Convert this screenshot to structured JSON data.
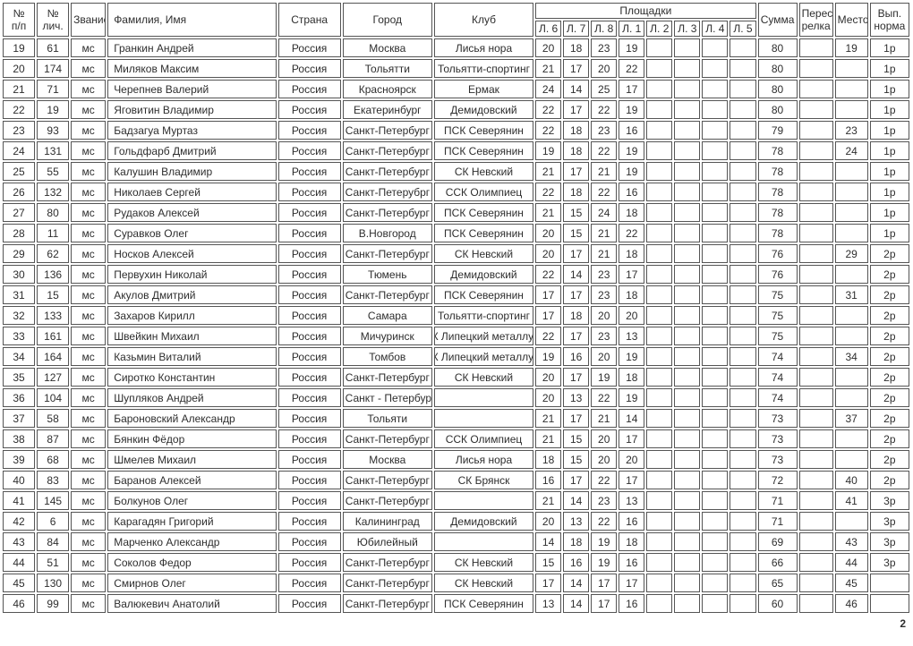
{
  "page": {
    "number": "2"
  },
  "table": {
    "headers": {
      "num": "№\nп/п",
      "personal_num": "№\nлич.",
      "rank": "Звание",
      "name": "Фамилия, Имя",
      "country": "Страна",
      "city": "Город",
      "club": "Клуб",
      "grounds_group": "Площадки",
      "ground_cols": [
        "Л. 6",
        "Л. 7",
        "Л. 8",
        "Л. 1",
        "Л. 2",
        "Л. 3",
        "Л. 4",
        "Л. 5"
      ],
      "sum": "Сумма",
      "shootoff": "Перест\nрелка",
      "place": "Место",
      "norm": "Вып.\nнорма"
    },
    "rows": [
      {
        "num": "19",
        "personal_num": "61",
        "rank": "мс",
        "name": "Гранкин Андрей",
        "country": "Россия",
        "city": "Москва",
        "club": "Лисья нора",
        "club_clipped": false,
        "scores": [
          "20",
          "18",
          "23",
          "19",
          "",
          "",
          "",
          ""
        ],
        "sum": "80",
        "shootoff": "",
        "place": "19",
        "norm": "1р"
      },
      {
        "num": "20",
        "personal_num": "174",
        "rank": "мс",
        "name": "Миляков Максим",
        "country": "Россия",
        "city": "Тольятти",
        "club": "Тольятти-спортинг",
        "club_clipped": false,
        "scores": [
          "21",
          "17",
          "20",
          "22",
          "",
          "",
          "",
          ""
        ],
        "sum": "80",
        "shootoff": "",
        "place": "",
        "norm": "1р"
      },
      {
        "num": "21",
        "personal_num": "71",
        "rank": "мс",
        "name": "Черепнев Валерий",
        "country": "Россия",
        "city": "Красноярск",
        "club": "Ермак",
        "club_clipped": false,
        "scores": [
          "24",
          "14",
          "25",
          "17",
          "",
          "",
          "",
          ""
        ],
        "sum": "80",
        "shootoff": "",
        "place": "",
        "norm": "1р"
      },
      {
        "num": "22",
        "personal_num": "19",
        "rank": "мс",
        "name": "Яговитин Владимир",
        "country": "Россия",
        "city": "Екатеринбург",
        "club": "Демидовский",
        "club_clipped": false,
        "scores": [
          "22",
          "17",
          "22",
          "19",
          "",
          "",
          "",
          ""
        ],
        "sum": "80",
        "shootoff": "",
        "place": "",
        "norm": "1р"
      },
      {
        "num": "23",
        "personal_num": "93",
        "rank": "мс",
        "name": "Бадзагуа Муртаз",
        "country": "Россия",
        "city": "Санкт-Петербург",
        "club": "ПСК Северянин",
        "club_clipped": false,
        "scores": [
          "22",
          "18",
          "23",
          "16",
          "",
          "",
          "",
          ""
        ],
        "sum": "79",
        "shootoff": "",
        "place": "23",
        "norm": "1р"
      },
      {
        "num": "24",
        "personal_num": "131",
        "rank": "мс",
        "name": "Гольдфарб Дмитрий",
        "country": "Россия",
        "city": "Санкт-Петербург",
        "club": "ПСК Северянин",
        "club_clipped": false,
        "scores": [
          "19",
          "18",
          "22",
          "19",
          "",
          "",
          "",
          ""
        ],
        "sum": "78",
        "shootoff": "",
        "place": "24",
        "norm": "1р"
      },
      {
        "num": "25",
        "personal_num": "55",
        "rank": "мс",
        "name": "Калушин Владимир",
        "country": "Россия",
        "city": "Санкт-Петербург",
        "club": "СК Невский",
        "club_clipped": false,
        "scores": [
          "21",
          "17",
          "21",
          "19",
          "",
          "",
          "",
          ""
        ],
        "sum": "78",
        "shootoff": "",
        "place": "",
        "norm": "1р"
      },
      {
        "num": "26",
        "personal_num": "132",
        "rank": "мс",
        "name": "Николаев Сергей",
        "country": "Россия",
        "city": "Санкт-Петерубрг",
        "club": "ССК Олимпиец",
        "club_clipped": false,
        "scores": [
          "22",
          "18",
          "22",
          "16",
          "",
          "",
          "",
          ""
        ],
        "sum": "78",
        "shootoff": "",
        "place": "",
        "norm": "1р"
      },
      {
        "num": "27",
        "personal_num": "80",
        "rank": "мс",
        "name": "Рудаков Алексей",
        "country": "Россия",
        "city": "Санкт-Петербург",
        "club": "ПСК Северянин",
        "club_clipped": false,
        "scores": [
          "21",
          "15",
          "24",
          "18",
          "",
          "",
          "",
          ""
        ],
        "sum": "78",
        "shootoff": "",
        "place": "",
        "norm": "1р"
      },
      {
        "num": "28",
        "personal_num": "11",
        "rank": "мс",
        "name": "Суравков Олег",
        "country": "Россия",
        "city": "В.Новгород",
        "club": "ПСК Северянин",
        "club_clipped": false,
        "scores": [
          "20",
          "15",
          "21",
          "22",
          "",
          "",
          "",
          ""
        ],
        "sum": "78",
        "shootoff": "",
        "place": "",
        "norm": "1р"
      },
      {
        "num": "29",
        "personal_num": "62",
        "rank": "мс",
        "name": "Носков Алексей",
        "country": "Россия",
        "city": "Санкт-Петербург",
        "club": "СК Невский",
        "club_clipped": false,
        "scores": [
          "20",
          "17",
          "21",
          "18",
          "",
          "",
          "",
          ""
        ],
        "sum": "76",
        "shootoff": "",
        "place": "29",
        "norm": "2р"
      },
      {
        "num": "30",
        "personal_num": "136",
        "rank": "мс",
        "name": "Первухин Николай",
        "country": "Россия",
        "city": "Тюмень",
        "club": "Демидовский",
        "club_clipped": false,
        "scores": [
          "22",
          "14",
          "23",
          "17",
          "",
          "",
          "",
          ""
        ],
        "sum": "76",
        "shootoff": "",
        "place": "",
        "norm": "2р"
      },
      {
        "num": "31",
        "personal_num": "15",
        "rank": "мс",
        "name": "Акулов Дмитрий",
        "country": "Россия",
        "city": "Санкт-Петербург",
        "club": "ПСК Северянин",
        "club_clipped": false,
        "scores": [
          "17",
          "17",
          "23",
          "18",
          "",
          "",
          "",
          ""
        ],
        "sum": "75",
        "shootoff": "",
        "place": "31",
        "norm": "2р"
      },
      {
        "num": "32",
        "personal_num": "133",
        "rank": "мс",
        "name": "Захаров Кирилл",
        "country": "Россия",
        "city": "Самара",
        "club": "Тольятти-спортинг",
        "club_clipped": false,
        "scores": [
          "17",
          "18",
          "20",
          "20",
          "",
          "",
          "",
          ""
        ],
        "sum": "75",
        "shootoff": "",
        "place": "",
        "norm": "2р"
      },
      {
        "num": "33",
        "personal_num": "161",
        "rank": "мс",
        "name": "Швейкин Михаил",
        "country": "Россия",
        "city": "Мичуринск",
        "club": "СК Липецкий металлург",
        "club_clipped": true,
        "scores": [
          "22",
          "17",
          "23",
          "13",
          "",
          "",
          "",
          ""
        ],
        "sum": "75",
        "shootoff": "",
        "place": "",
        "norm": "2р"
      },
      {
        "num": "34",
        "personal_num": "164",
        "rank": "мс",
        "name": "Казьмин Виталий",
        "country": "Россия",
        "city": "Томбов",
        "club": "СК Липецкий металлург",
        "club_clipped": true,
        "scores": [
          "19",
          "16",
          "20",
          "19",
          "",
          "",
          "",
          ""
        ],
        "sum": "74",
        "shootoff": "",
        "place": "34",
        "norm": "2р"
      },
      {
        "num": "35",
        "personal_num": "127",
        "rank": "мс",
        "name": "Сиротко Константин",
        "country": "Россия",
        "city": "Санкт-Петербург",
        "club": "СК Невский",
        "club_clipped": false,
        "scores": [
          "20",
          "17",
          "19",
          "18",
          "",
          "",
          "",
          ""
        ],
        "sum": "74",
        "shootoff": "",
        "place": "",
        "norm": "2р"
      },
      {
        "num": "36",
        "personal_num": "104",
        "rank": "мс",
        "name": "Шупляков Андрей",
        "country": "Россия",
        "city": "Санкт - Петербург",
        "club": "",
        "club_clipped": false,
        "scores": [
          "20",
          "13",
          "22",
          "19",
          "",
          "",
          "",
          ""
        ],
        "sum": "74",
        "shootoff": "",
        "place": "",
        "norm": "2р"
      },
      {
        "num": "37",
        "personal_num": "58",
        "rank": "мс",
        "name": "Бароновский Александр",
        "country": "Россия",
        "city": "Тольяти",
        "club": "",
        "club_clipped": false,
        "scores": [
          "21",
          "17",
          "21",
          "14",
          "",
          "",
          "",
          ""
        ],
        "sum": "73",
        "shootoff": "",
        "place": "37",
        "norm": "2р"
      },
      {
        "num": "38",
        "personal_num": "87",
        "rank": "мс",
        "name": "Бянкин Фёдор",
        "country": "Россия",
        "city": "Санкт-Петербург",
        "club": "ССК Олимпиец",
        "club_clipped": false,
        "scores": [
          "21",
          "15",
          "20",
          "17",
          "",
          "",
          "",
          ""
        ],
        "sum": "73",
        "shootoff": "",
        "place": "",
        "norm": "2р"
      },
      {
        "num": "39",
        "personal_num": "68",
        "rank": "мс",
        "name": "Шмелев Михаил",
        "country": "Россия",
        "city": "Москва",
        "club": "Лисья нора",
        "club_clipped": false,
        "scores": [
          "18",
          "15",
          "20",
          "20",
          "",
          "",
          "",
          ""
        ],
        "sum": "73",
        "shootoff": "",
        "place": "",
        "norm": "2р"
      },
      {
        "num": "40",
        "personal_num": "83",
        "rank": "мс",
        "name": "Баранов Алексей",
        "country": "Россия",
        "city": "Санкт-Петербург",
        "club": "СК Брянск",
        "club_clipped": false,
        "scores": [
          "16",
          "17",
          "22",
          "17",
          "",
          "",
          "",
          ""
        ],
        "sum": "72",
        "shootoff": "",
        "place": "40",
        "norm": "2р"
      },
      {
        "num": "41",
        "personal_num": "145",
        "rank": "мс",
        "name": "Болкунов Олег",
        "country": "Россия",
        "city": "Санкт-Петербург",
        "club": "",
        "club_clipped": false,
        "scores": [
          "21",
          "14",
          "23",
          "13",
          "",
          "",
          "",
          ""
        ],
        "sum": "71",
        "shootoff": "",
        "place": "41",
        "norm": "3р"
      },
      {
        "num": "42",
        "personal_num": "6",
        "rank": "мс",
        "name": "Карагадян Григорий",
        "country": "Россия",
        "city": "Калининград",
        "club": "Демидовский",
        "club_clipped": false,
        "scores": [
          "20",
          "13",
          "22",
          "16",
          "",
          "",
          "",
          ""
        ],
        "sum": "71",
        "shootoff": "",
        "place": "",
        "norm": "3р"
      },
      {
        "num": "43",
        "personal_num": "84",
        "rank": "мс",
        "name": "Марченко Александр",
        "country": "Россия",
        "city": "Юбилейный",
        "club": "",
        "club_clipped": false,
        "scores": [
          "14",
          "18",
          "19",
          "18",
          "",
          "",
          "",
          ""
        ],
        "sum": "69",
        "shootoff": "",
        "place": "43",
        "norm": "3р"
      },
      {
        "num": "44",
        "personal_num": "51",
        "rank": "мс",
        "name": "Соколов Федор",
        "country": "Россия",
        "city": "Санкт-Петербург",
        "club": "СК Невский",
        "club_clipped": false,
        "scores": [
          "15",
          "16",
          "19",
          "16",
          "",
          "",
          "",
          ""
        ],
        "sum": "66",
        "shootoff": "",
        "place": "44",
        "norm": "3р"
      },
      {
        "num": "45",
        "personal_num": "130",
        "rank": "мс",
        "name": "Смирнов Олег",
        "country": "Россия",
        "city": "Санкт-Петербург",
        "club": "СК Невский",
        "club_clipped": false,
        "scores": [
          "17",
          "14",
          "17",
          "17",
          "",
          "",
          "",
          ""
        ],
        "sum": "65",
        "shootoff": "",
        "place": "45",
        "norm": ""
      },
      {
        "num": "46",
        "personal_num": "99",
        "rank": "мс",
        "name": "Валюкевич Анатолий",
        "country": "Россия",
        "city": "Санкт-Петербург",
        "club": "ПСК Северянин",
        "club_clipped": false,
        "scores": [
          "13",
          "14",
          "17",
          "16",
          "",
          "",
          "",
          ""
        ],
        "sum": "60",
        "shootoff": "",
        "place": "46",
        "norm": ""
      }
    ]
  }
}
